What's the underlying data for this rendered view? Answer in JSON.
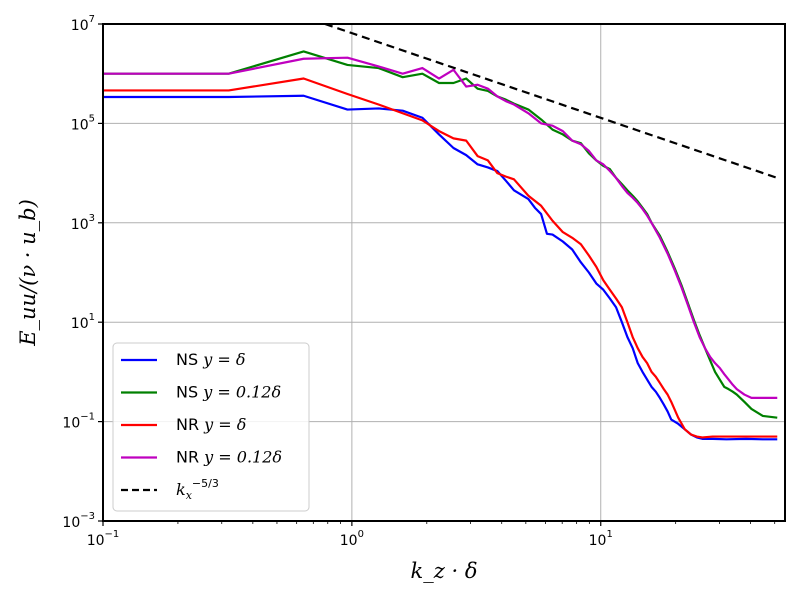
{
  "chart_data": {
    "type": "line",
    "xscale": "log",
    "yscale": "log",
    "xlim": [
      0.1,
      55
    ],
    "ylim": [
      0.001,
      10000000
    ],
    "grid": true,
    "xlabel": "k_z · δ",
    "ylabel": "E_uu/(ν · u_b)",
    "x_ticks": [
      {
        "base": "10",
        "exp": "−1",
        "value": 0.1
      },
      {
        "base": "10",
        "exp": "0",
        "value": 1
      },
      {
        "base": "10",
        "exp": "1",
        "value": 10
      }
    ],
    "y_ticks": [
      {
        "base": "10",
        "exp": "−3",
        "value": 0.001
      },
      {
        "base": "10",
        "exp": "−1",
        "value": 0.1
      },
      {
        "base": "10",
        "exp": "1",
        "value": 10
      },
      {
        "base": "10",
        "exp": "3",
        "value": 1000
      },
      {
        "base": "10",
        "exp": "5",
        "value": 100000
      },
      {
        "base": "10",
        "exp": "7",
        "value": 10000000
      }
    ],
    "legend_position": "lower-left",
    "series": [
      {
        "name": "NS y = δ",
        "label_prefix": "NS ",
        "label_math": "y = δ",
        "color": "#0000ff",
        "style": "solid",
        "x": [
          0.1,
          0.32,
          0.64,
          0.96,
          1.28,
          1.6,
          1.92,
          2.24,
          2.56,
          2.88,
          3.2,
          3.52,
          3.84,
          4.16,
          4.48,
          5.12,
          5.44,
          5.76,
          6.08,
          6.4,
          7.04,
          7.68,
          8.32,
          8.96,
          9.6,
          10.24,
          10.88,
          11.52,
          12.16,
          12.8,
          13.44,
          14.08,
          14.72,
          15.36,
          16.0,
          16.64,
          17.28,
          17.92,
          18.56,
          19.2,
          20.48,
          21.76,
          23.04,
          24.32,
          25.6,
          28.16,
          32.0,
          38.4,
          44.8,
          51.2
        ],
        "y": [
          340000,
          340000,
          360000,
          190000,
          200000,
          180000,
          130000,
          60000,
          32000,
          23000,
          15000,
          13000,
          11000,
          7000,
          4500,
          3000,
          2000,
          1500,
          600,
          580,
          420,
          290,
          160,
          100,
          60,
          45,
          30,
          20,
          10,
          5,
          3,
          1.5,
          1.0,
          0.7,
          0.5,
          0.4,
          0.3,
          0.22,
          0.16,
          0.11,
          0.09,
          0.07,
          0.055,
          0.048,
          0.045,
          0.045,
          0.044,
          0.045,
          0.044,
          0.044
        ]
      },
      {
        "name": "NS y = 0.12δ",
        "label_prefix": "NS ",
        "label_math": "y = 0.12δ",
        "color": "#008000",
        "style": "solid",
        "x": [
          0.1,
          0.32,
          0.64,
          0.96,
          1.28,
          1.6,
          1.92,
          2.24,
          2.56,
          2.88,
          3.2,
          3.52,
          3.84,
          4.16,
          4.48,
          5.12,
          5.76,
          6.4,
          7.04,
          7.68,
          8.32,
          8.96,
          9.6,
          10.24,
          10.88,
          11.52,
          12.16,
          12.8,
          13.44,
          14.08,
          14.72,
          15.36,
          16.0,
          17.28,
          18.56,
          19.84,
          21.12,
          22.4,
          23.68,
          24.96,
          26.24,
          27.52,
          28.8,
          30.08,
          31.36,
          32.64,
          33.92,
          35.2,
          37.76,
          40.32,
          44.8,
          51.2
        ],
        "y": [
          1000000,
          1000000,
          2800000,
          1500000,
          1300000,
          850000,
          1000000,
          650000,
          650000,
          800000,
          500000,
          450000,
          350000,
          300000,
          250000,
          190000,
          120000,
          75000,
          60000,
          45000,
          40000,
          25000,
          18000,
          14000,
          12000,
          8000,
          6000,
          4500,
          3500,
          2700,
          2000,
          1500,
          1000,
          550,
          260,
          120,
          55,
          24,
          11,
          5.5,
          3.0,
          1.7,
          1.0,
          0.7,
          0.5,
          0.45,
          0.4,
          0.35,
          0.25,
          0.18,
          0.13,
          0.12
        ]
      },
      {
        "name": "NR y = δ",
        "label_prefix": "NR ",
        "label_math": "y = δ",
        "color": "#ff0000",
        "style": "solid",
        "x": [
          0.1,
          0.32,
          0.64,
          0.96,
          1.28,
          1.6,
          1.92,
          2.24,
          2.56,
          2.88,
          3.2,
          3.52,
          3.84,
          4.16,
          4.48,
          5.12,
          5.76,
          6.4,
          7.04,
          7.68,
          8.32,
          8.96,
          9.6,
          10.24,
          10.88,
          11.52,
          12.16,
          12.8,
          13.44,
          14.08,
          14.72,
          15.36,
          16.0,
          16.64,
          17.28,
          17.92,
          18.56,
          19.2,
          20.48,
          21.76,
          23.04,
          24.32,
          25.6,
          28.16,
          32.0,
          38.4,
          44.8,
          51.2
        ],
        "y": [
          460000,
          460000,
          800000,
          390000,
          240000,
          160000,
          115000,
          70000,
          50000,
          45000,
          22000,
          18000,
          10000,
          8500,
          7500,
          3500,
          2200,
          1100,
          650,
          500,
          370,
          220,
          130,
          70,
          45,
          30,
          20,
          10,
          5,
          3,
          2,
          1.5,
          1.0,
          0.8,
          0.6,
          0.45,
          0.35,
          0.25,
          0.12,
          0.07,
          0.055,
          0.05,
          0.048,
          0.05,
          0.05,
          0.05,
          0.05,
          0.05
        ]
      },
      {
        "name": "NR y = 0.12δ",
        "label_prefix": "NR ",
        "label_math": "y = 0.12δ",
        "color": "#bf00bf",
        "style": "solid",
        "x": [
          0.1,
          0.32,
          0.64,
          0.96,
          1.28,
          1.6,
          1.92,
          2.24,
          2.56,
          2.88,
          3.2,
          3.52,
          3.84,
          4.16,
          4.48,
          5.12,
          5.76,
          6.4,
          7.04,
          7.68,
          8.32,
          8.96,
          9.6,
          10.24,
          10.88,
          11.52,
          12.16,
          12.8,
          13.44,
          14.08,
          14.72,
          15.36,
          16.0,
          17.28,
          18.56,
          19.84,
          21.12,
          22.4,
          23.68,
          24.96,
          26.24,
          27.52,
          28.8,
          30.08,
          31.36,
          32.64,
          33.92,
          35.2,
          37.76,
          40.32,
          44.8,
          51.2
        ],
        "y": [
          1000000,
          1000000,
          2000000,
          2100000,
          1400000,
          1000000,
          1300000,
          800000,
          1200000,
          550000,
          600000,
          500000,
          350000,
          280000,
          240000,
          160000,
          100000,
          90000,
          70000,
          45000,
          38000,
          28000,
          18000,
          15000,
          11000,
          8000,
          5500,
          4000,
          3200,
          2500,
          1900,
          1400,
          1000,
          500,
          240,
          110,
          50,
          22,
          10,
          5,
          3,
          2,
          1.5,
          1.2,
          0.9,
          0.7,
          0.55,
          0.45,
          0.35,
          0.3,
          0.3,
          0.3
        ]
      },
      {
        "name": "k_x^−5/3",
        "label_math": "k",
        "label_sub": "x",
        "label_sup": "−5/3",
        "color": "#000000",
        "style": "dashed",
        "x": [
          0.78,
          51.2
        ],
        "y": [
          10000000,
          8000
        ]
      }
    ]
  }
}
